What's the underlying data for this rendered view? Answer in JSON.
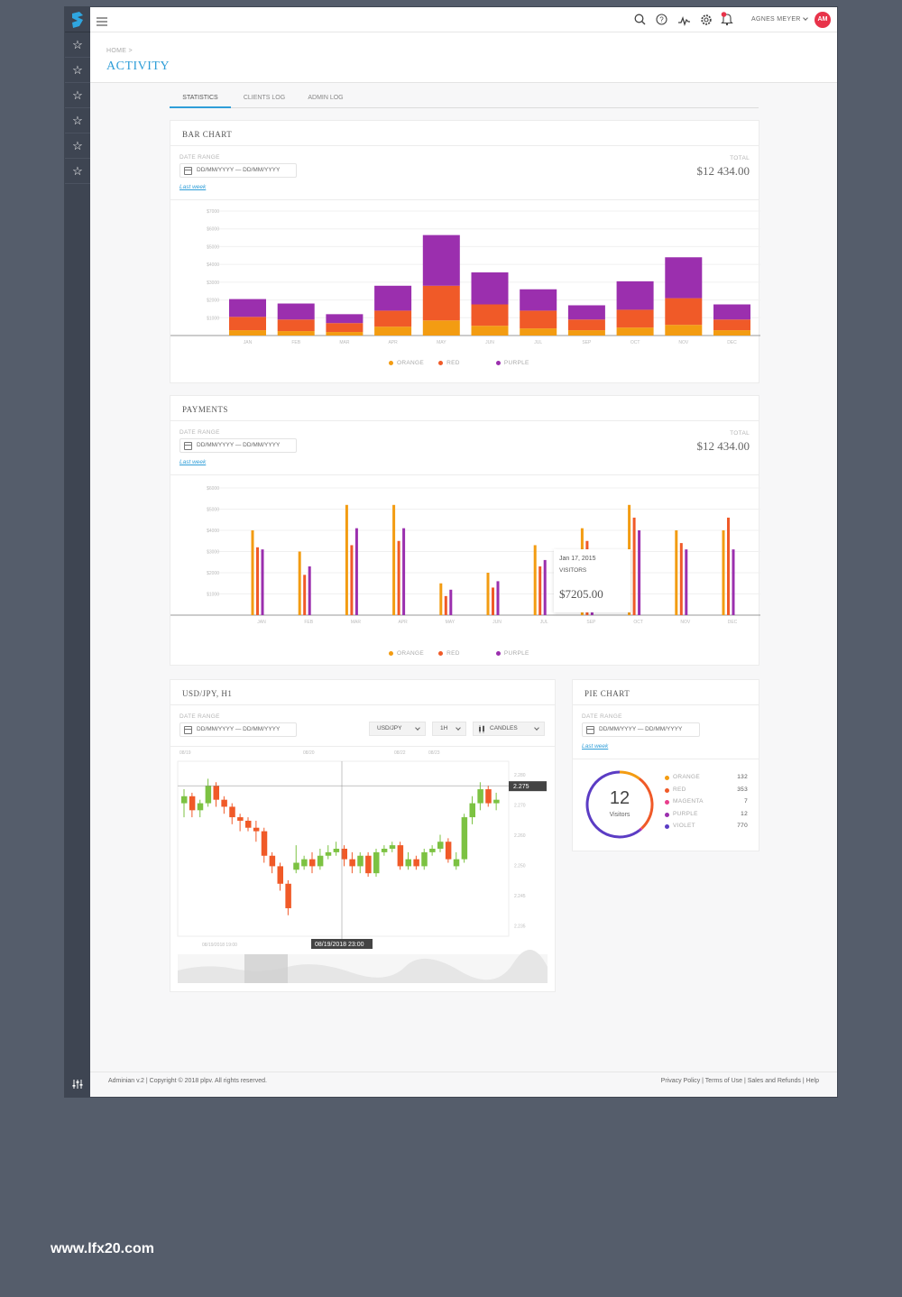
{
  "user": {
    "name": "AGNES MEYER",
    "initials": "AM"
  },
  "breadcrumb": "HOME >",
  "page_title": "ACTIVITY",
  "tabs": [
    {
      "label": "STATISTICS",
      "active": true
    },
    {
      "label": "CLIENTS LOG",
      "active": false
    },
    {
      "label": "ADMIN LOG",
      "active": false
    }
  ],
  "bar_card": {
    "title": "BAR CHART",
    "date_range_label": "DATE RANGE",
    "date_range_value": "DD/MM/YYYY — DD/MM/YYYY",
    "last_week": "Last week",
    "total_label": "TOTAL",
    "total_value": "$12 434.00"
  },
  "payments_card": {
    "title": "PAYMENTS",
    "date_range_label": "DATE RANGE",
    "date_range_value": "DD/MM/YYYY — DD/MM/YYYY",
    "last_week": "Last week",
    "total_label": "TOTAL",
    "total_value": "$12 434.00",
    "tooltip": {
      "date": "Jan 17, 2015",
      "label": "VISITORS",
      "value": "$7205.00"
    }
  },
  "fx_card": {
    "title": "USD/JPY, H1",
    "date_range_label": "DATE RANGE",
    "date_range_value": "DD/MM/YYYY — DD/MM/YYYY",
    "pair_select": "USD/JPY",
    "interval_select": "1H",
    "type_select": "CANDLES",
    "top_dates": [
      "08/19",
      "08/20",
      "08/22",
      "08/23"
    ],
    "price_ticks": [
      "2.280",
      "2.270",
      "2.260",
      "2.250",
      "2.245",
      "2.235"
    ],
    "current_price": "2.275",
    "crosshair_time": "08/19/2018 23:00",
    "left_time": "08/19/2018 19:00"
  },
  "pie_card": {
    "title": "PIE CHART",
    "date_range_label": "DATE RANGE",
    "date_range_value": "DD/MM/YYYY — DD/MM/YYYY",
    "last_week": "Last week",
    "center_value": "12",
    "center_label": "Visitors",
    "items": [
      {
        "label": "ORANGE",
        "value": "132",
        "color": "#f39c12"
      },
      {
        "label": "RED",
        "value": "353",
        "color": "#f05a28"
      },
      {
        "label": "MAGENTA",
        "value": "7",
        "color": "#e83e8c"
      },
      {
        "label": "PURPLE",
        "value": "12",
        "color": "#9b2fae"
      },
      {
        "label": "VIOLET",
        "value": "770",
        "color": "#5b3cc4"
      }
    ]
  },
  "footer": {
    "left": "Adminian v.2 |  Copyright © 2018 plpv. All rights reserved.",
    "links": "Privacy Policy | Terms of Use | Sales and Refunds | Help"
  },
  "watermark": "www.lfx20.com",
  "colors": {
    "orange": "#f39c12",
    "red": "#f05a28",
    "purple": "#9b2fae",
    "accent": "#2f9ed8"
  },
  "chart_data": [
    {
      "type": "bar",
      "stacked": true,
      "categories": [
        "JAN",
        "FEB",
        "MAR",
        "APR",
        "MAY",
        "JUN",
        "JUL",
        "SEP",
        "OCT",
        "NOV",
        "DEC"
      ],
      "y_ticks": [
        "$7000",
        "$6000",
        "$5000",
        "$4000",
        "$3000",
        "$2000",
        "$1000"
      ],
      "ylim": [
        0,
        7000
      ],
      "series": [
        {
          "name": "ORANGE",
          "values": [
            300,
            250,
            200,
            500,
            850,
            550,
            400,
            300,
            450,
            600,
            300
          ]
        },
        {
          "name": "RED",
          "values": [
            750,
            650,
            500,
            900,
            1950,
            1200,
            1000,
            600,
            1000,
            1500,
            600
          ]
        },
        {
          "name": "PURPLE",
          "values": [
            1000,
            900,
            500,
            1400,
            2850,
            1800,
            1200,
            800,
            1600,
            2300,
            850
          ]
        }
      ],
      "legend": "bottom"
    },
    {
      "type": "bar",
      "categories": [
        "JAN",
        "FEB",
        "MAR",
        "APR",
        "MAY",
        "JUN",
        "JUL",
        "SEP",
        "OCT",
        "NOV",
        "DEC"
      ],
      "y_ticks": [
        "$6000",
        "$5000",
        "$4000",
        "$3000",
        "$2000",
        "$1000"
      ],
      "ylim": [
        0,
        6000
      ],
      "series": [
        {
          "name": "ORANGE",
          "values": [
            4000,
            3000,
            5200,
            5200,
            1500,
            2000,
            3300,
            4100,
            5200,
            4000,
            4000
          ]
        },
        {
          "name": "RED",
          "values": [
            3200,
            1900,
            3300,
            3500,
            900,
            1300,
            2300,
            3500,
            4600,
            3400,
            4600
          ]
        },
        {
          "name": "PURPLE",
          "values": [
            3100,
            2300,
            4100,
            4100,
            1200,
            1600,
            2600,
            3000,
            4000,
            3100,
            3100
          ]
        }
      ],
      "legend": "bottom"
    },
    {
      "type": "candlestick",
      "ylim": [
        2.232,
        2.282
      ],
      "candles": [
        [
          2.27,
          2.272,
          2.266,
          2.274,
          "g"
        ],
        [
          2.272,
          2.268,
          2.266,
          2.273,
          "r"
        ],
        [
          2.268,
          2.27,
          2.266,
          2.271,
          "g"
        ],
        [
          2.27,
          2.275,
          2.269,
          2.277,
          "g"
        ],
        [
          2.275,
          2.271,
          2.269,
          2.276,
          "r"
        ],
        [
          2.271,
          2.269,
          2.267,
          2.272,
          "r"
        ],
        [
          2.269,
          2.266,
          2.264,
          2.27,
          "r"
        ],
        [
          2.266,
          2.265,
          2.262,
          2.267,
          "r"
        ],
        [
          2.265,
          2.263,
          2.262,
          2.266,
          "r"
        ],
        [
          2.263,
          2.262,
          2.259,
          2.265,
          "r"
        ],
        [
          2.262,
          2.255,
          2.253,
          2.263,
          "r"
        ],
        [
          2.255,
          2.252,
          2.25,
          2.256,
          "r"
        ],
        [
          2.252,
          2.247,
          2.245,
          2.253,
          "r"
        ],
        [
          2.247,
          2.24,
          2.238,
          2.248,
          "r"
        ],
        [
          2.251,
          2.253,
          2.25,
          2.258,
          "g"
        ],
        [
          2.252,
          2.254,
          2.251,
          2.255,
          "g"
        ],
        [
          2.254,
          2.252,
          2.25,
          2.256,
          "r"
        ],
        [
          2.252,
          2.255,
          2.251,
          2.257,
          "g"
        ],
        [
          2.255,
          2.256,
          2.254,
          2.258,
          "g"
        ],
        [
          2.256,
          2.257,
          2.255,
          2.259,
          "g"
        ],
        [
          2.257,
          2.254,
          2.252,
          2.258,
          "r"
        ],
        [
          2.254,
          2.252,
          2.25,
          2.256,
          "r"
        ],
        [
          2.252,
          2.255,
          2.25,
          2.256,
          "g"
        ],
        [
          2.255,
          2.25,
          2.249,
          2.256,
          "r"
        ],
        [
          2.25,
          2.256,
          2.249,
          2.257,
          "g"
        ],
        [
          2.256,
          2.257,
          2.255,
          2.258,
          "g"
        ],
        [
          2.257,
          2.258,
          2.256,
          2.259,
          "g"
        ],
        [
          2.258,
          2.252,
          2.251,
          2.259,
          "r"
        ],
        [
          2.252,
          2.254,
          2.251,
          2.256,
          "g"
        ],
        [
          2.254,
          2.252,
          2.251,
          2.255,
          "r"
        ],
        [
          2.252,
          2.256,
          2.251,
          2.257,
          "g"
        ],
        [
          2.256,
          2.257,
          2.255,
          2.258,
          "g"
        ],
        [
          2.257,
          2.259,
          2.256,
          2.261,
          "g"
        ],
        [
          2.259,
          2.254,
          2.253,
          2.26,
          "r"
        ],
        [
          2.252,
          2.254,
          2.251,
          2.256,
          "g"
        ],
        [
          2.254,
          2.266,
          2.253,
          2.267,
          "g"
        ],
        [
          2.266,
          2.27,
          2.264,
          2.272,
          "g"
        ],
        [
          2.27,
          2.274,
          2.268,
          2.276,
          "g"
        ],
        [
          2.274,
          2.27,
          2.269,
          2.275,
          "r"
        ],
        [
          2.27,
          2.271,
          2.268,
          2.273,
          "g"
        ]
      ]
    },
    {
      "type": "pie",
      "labels": [
        "ORANGE",
        "RED",
        "MAGENTA",
        "PURPLE",
        "VIOLET"
      ],
      "values": [
        132,
        353,
        7,
        12,
        770
      ]
    }
  ]
}
